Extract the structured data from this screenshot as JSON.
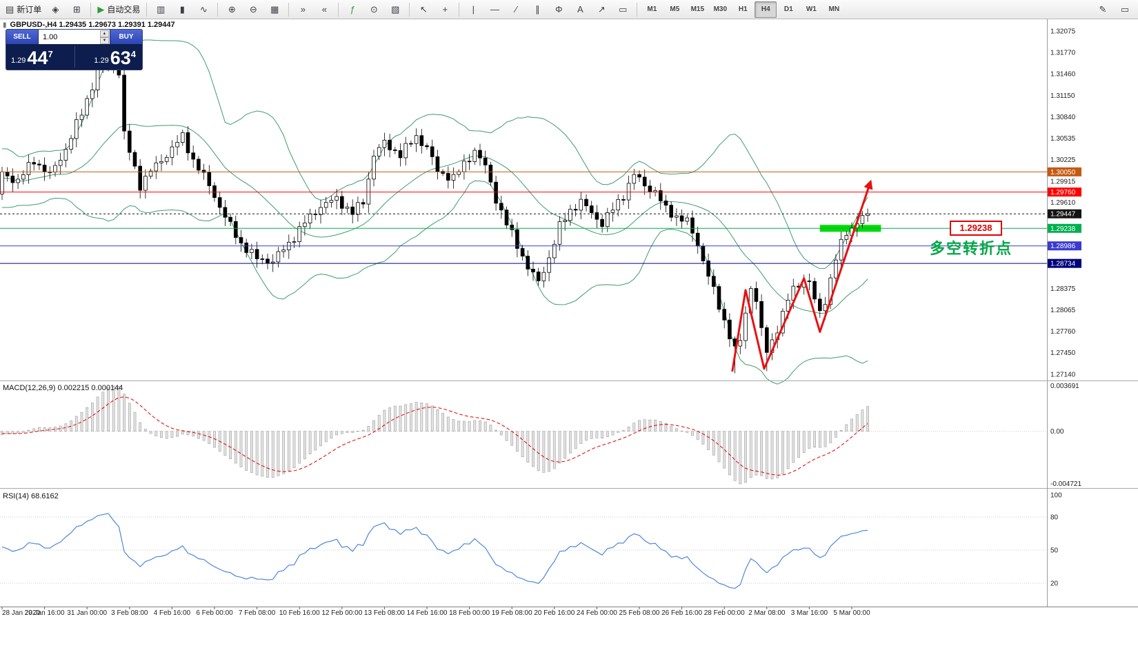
{
  "toolbar": {
    "groups": [
      {
        "buttons": [
          {
            "name": "new-order",
            "icon": "▤",
            "label": "新订单"
          },
          {
            "name": "chart-panel",
            "icon": "◈"
          },
          {
            "name": "market-watch",
            "icon": "⊞"
          }
        ]
      },
      {
        "buttons": [
          {
            "name": "autotrading",
            "icon": "▶",
            "label": "自动交易",
            "icon_color": "#2e9e3a"
          }
        ]
      },
      {
        "buttons": [
          {
            "name": "bar-chart",
            "icon": "▥"
          },
          {
            "name": "candle-chart",
            "icon": "▮"
          },
          {
            "name": "line-chart",
            "icon": "∿"
          }
        ]
      },
      {
        "buttons": [
          {
            "name": "zoom-in",
            "icon": "⊕"
          },
          {
            "name": "zoom-out",
            "icon": "⊖"
          },
          {
            "name": "grid",
            "icon": "▦"
          }
        ]
      },
      {
        "buttons": [
          {
            "name": "auto-scroll",
            "icon": "»"
          },
          {
            "name": "chart-shift",
            "icon": "«"
          }
        ]
      },
      {
        "buttons": [
          {
            "name": "add-indicator",
            "icon": "ƒ",
            "icon_color": "#2e9e3a"
          },
          {
            "name": "periods",
            "icon": "⊙"
          },
          {
            "name": "templates",
            "icon": "▧"
          }
        ]
      },
      {
        "buttons": [
          {
            "name": "cursor",
            "icon": "↖"
          },
          {
            "name": "crosshair",
            "icon": "+"
          }
        ]
      },
      {
        "buttons": [
          {
            "name": "vertical-line",
            "icon": "|"
          },
          {
            "name": "horizontal-line",
            "icon": "—"
          },
          {
            "name": "trendline",
            "icon": "∕"
          },
          {
            "name": "channel",
            "icon": "∥"
          },
          {
            "name": "fibonacci",
            "icon": "Φ"
          },
          {
            "name": "text-tool",
            "icon": "A"
          },
          {
            "name": "arrows-tool",
            "icon": "↗"
          },
          {
            "name": "shapes-tool",
            "icon": "▭"
          }
        ]
      }
    ],
    "timeframes": {
      "items": [
        "M1",
        "M5",
        "M15",
        "M30",
        "H1",
        "H4",
        "D1",
        "W1",
        "MN"
      ],
      "active": "H4"
    },
    "right_buttons": [
      {
        "name": "edit",
        "icon": "✎"
      },
      {
        "name": "window",
        "icon": "▭"
      }
    ]
  },
  "chart": {
    "title": "GBPUSD-,H4  1.29435 1.29673 1.29391 1.29447",
    "one_click": {
      "sell_label": "SELL",
      "buy_label": "BUY",
      "volume": "1.00",
      "sell_price_small": "1.29",
      "sell_price_big": "44",
      "sell_price_sup": "7",
      "buy_price_small": "1.29",
      "buy_price_big": "63",
      "buy_price_sup": "4"
    }
  },
  "indicators": {
    "macd_text": "MACD(12,26,9) 0.002215 0.000144",
    "rsi_text": "RSI(14) 68.6162"
  },
  "chart_data": {
    "type": "candlestick",
    "symbol": "GBPUSD-",
    "timeframe": "H4",
    "last_ohlc": {
      "open": 1.29435,
      "high": 1.29673,
      "low": 1.29391,
      "close": 1.29447
    },
    "price_axis": {
      "min": 1.2714,
      "max": 1.32075,
      "ticks": [
        1.32075,
        1.3177,
        1.3146,
        1.3115,
        1.3084,
        1.30535,
        1.30225,
        1.29915,
        1.2961,
        1.28375,
        1.28065,
        1.2776,
        1.2745,
        1.2714
      ]
    },
    "current": {
      "price": 1.29447,
      "color": "#141414"
    },
    "hlines": [
      {
        "price": 1.3005,
        "color": "#C45911",
        "width": 1
      },
      {
        "price": 1.2976,
        "color": "#FF0000",
        "width": 1
      },
      {
        "price": 1.29238,
        "color": "#00B050",
        "width": 1
      },
      {
        "price": 1.28986,
        "color": "#3A3AD0",
        "width": 1
      },
      {
        "price": 1.28734,
        "color": "#000078",
        "width": 1
      }
    ],
    "candles": {
      "count": 164,
      "last_close": 1.29447,
      "anchors": [
        [
          0,
          1.3002
        ],
        [
          3,
          1.2992
        ],
        [
          6,
          1.3022
        ],
        [
          9,
          1.3
        ],
        [
          12,
          1.3038
        ],
        [
          15,
          1.309
        ],
        [
          18,
          1.3148
        ],
        [
          20,
          1.3172
        ],
        [
          22,
          1.3148
        ],
        [
          23,
          1.3058
        ],
        [
          26,
          1.2986
        ],
        [
          28,
          1.3006
        ],
        [
          31,
          1.303
        ],
        [
          34,
          1.3056
        ],
        [
          36,
          1.3022
        ],
        [
          39,
          1.2986
        ],
        [
          42,
          1.294
        ],
        [
          45,
          1.2902
        ],
        [
          48,
          1.288
        ],
        [
          51,
          1.2877
        ],
        [
          54,
          1.2902
        ],
        [
          57,
          1.2932
        ],
        [
          60,
          1.2956
        ],
        [
          63,
          1.2966
        ],
        [
          66,
          1.2946
        ],
        [
          68,
          1.2962
        ],
        [
          70,
          1.303
        ],
        [
          72,
          1.3046
        ],
        [
          75,
          1.303
        ],
        [
          78,
          1.3056
        ],
        [
          80,
          1.304
        ],
        [
          82,
          1.3006
        ],
        [
          85,
          1.2996
        ],
        [
          87,
          1.3016
        ],
        [
          89,
          1.3036
        ],
        [
          91,
          1.3012
        ],
        [
          93,
          1.2966
        ],
        [
          95,
          1.293
        ],
        [
          97,
          1.29
        ],
        [
          99,
          1.2868
        ],
        [
          101,
          1.2846
        ],
        [
          103,
          1.2882
        ],
        [
          105,
          1.2926
        ],
        [
          107,
          1.295
        ],
        [
          109,
          1.2962
        ],
        [
          111,
          1.2946
        ],
        [
          113,
          1.2931
        ],
        [
          115,
          1.2951
        ],
        [
          117,
          1.2972
        ],
        [
          119,
          1.3001
        ],
        [
          121,
          1.2986
        ],
        [
          123,
          1.2976
        ],
        [
          125,
          1.2951
        ],
        [
          127,
          1.2941
        ],
        [
          129,
          1.2933
        ],
        [
          131,
          1.2901
        ],
        [
          133,
          1.2856
        ],
        [
          135,
          1.2811
        ],
        [
          137,
          1.2771
        ],
        [
          138,
          1.2749
        ],
        [
          139,
          1.2762
        ],
        [
          140,
          1.2801
        ],
        [
          141,
          1.2841
        ],
        [
          142,
          1.2821
        ],
        [
          143,
          1.2776
        ],
        [
          144,
          1.2746
        ],
        [
          145,
          1.2761
        ],
        [
          146,
          1.2781
        ],
        [
          147,
          1.2801
        ],
        [
          148,
          1.2821
        ],
        [
          149,
          1.2836
        ],
        [
          150,
          1.2843
        ],
        [
          151,
          1.2851
        ],
        [
          152,
          1.2846
        ],
        [
          153,
          1.2821
        ],
        [
          154,
          1.2801
        ],
        [
          155,
          1.2821
        ],
        [
          156,
          1.2851
        ],
        [
          157,
          1.2881
        ],
        [
          158,
          1.2901
        ],
        [
          159,
          1.2916
        ],
        [
          160,
          1.2926
        ],
        [
          161,
          1.2933
        ],
        [
          162,
          1.2941
        ],
        [
          163,
          1.29447
        ]
      ],
      "wick_overrides": [
        {
          "idx": 19,
          "high": 1.32055
        },
        {
          "idx": 20,
          "high": 1.32005
        },
        {
          "idx": 138,
          "low": 1.27155
        },
        {
          "idx": 144,
          "low": 1.27185
        }
      ]
    },
    "indicator_params": {
      "bollinger": {
        "period": 20,
        "deviation": 2,
        "color": "#3E9B70"
      },
      "macd": {
        "fast": 12,
        "slow": 26,
        "signal": 9,
        "value": 0.002215,
        "signal_value": 0.000144,
        "scale_top": "0.003691",
        "scale_zero": "0.00",
        "scale_bottom": "-0.004721"
      },
      "rsi": {
        "period": 14,
        "value": 68.6162,
        "levels": [
          80,
          50,
          20
        ],
        "scale": [
          "100",
          "80",
          "50",
          "20"
        ]
      }
    },
    "time_labels": [
      "28 Jan 2020",
      "29 Jan 16:00",
      "31 Jan 00:00",
      "3 Feb 08:00",
      "4 Feb 16:00",
      "6 Feb 00:00",
      "7 Feb 08:00",
      "10 Feb 16:00",
      "12 Feb 00:00",
      "13 Feb 08:00",
      "14 Feb 16:00",
      "18 Feb 00:00",
      "19 Feb 08:00",
      "20 Feb 16:00",
      "24 Feb 00:00",
      "25 Feb 08:00",
      "26 Feb 16:00",
      "28 Feb 00:00",
      "2 Mar 08:00",
      "3 Mar 16:00",
      "5 Mar 00:00"
    ],
    "annotations": {
      "trend_arrow": {
        "color": "#E81010",
        "points": [
          [
            137.5,
            1.2718
          ],
          [
            140,
            1.2835
          ],
          [
            143.5,
            1.2722
          ],
          [
            151,
            1.2852
          ],
          [
            154,
            1.2775
          ],
          [
            163.5,
            1.299
          ]
        ]
      },
      "highlight": {
        "from_idx": 154,
        "to_idx": 165.5,
        "price": 1.29238,
        "half_h": 5,
        "color": "#00DC00"
      },
      "price_box": {
        "text": "1.29238",
        "color": "#E00000"
      },
      "label_cn": {
        "text": "多空转折点",
        "color": "#00A844"
      }
    }
  }
}
